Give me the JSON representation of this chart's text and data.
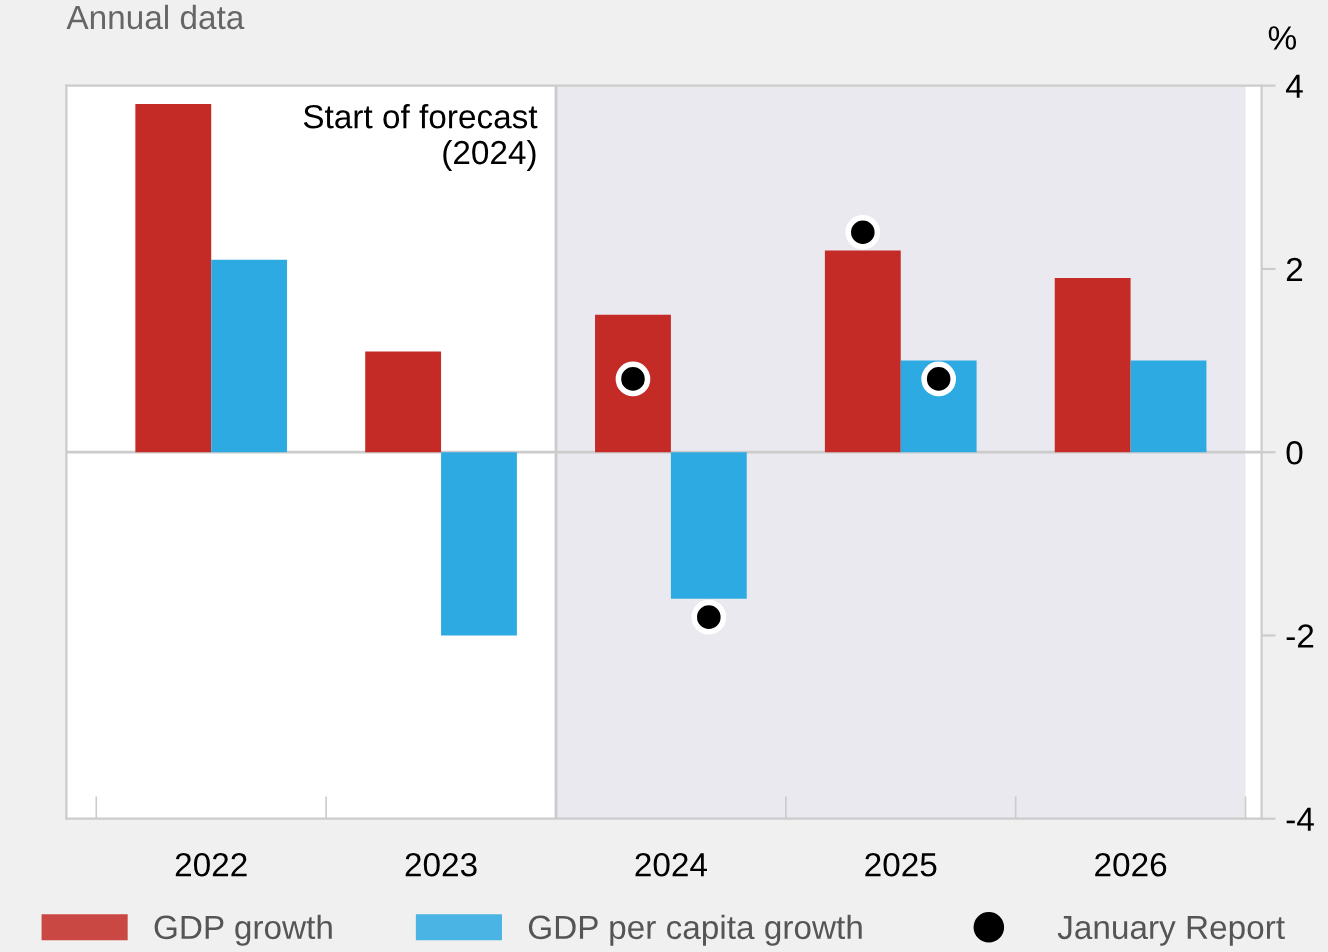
{
  "chart_data": {
    "type": "bar",
    "subtitle": "Annual data",
    "ylabel": "%",
    "categories": [
      "2022",
      "2023",
      "2024",
      "2025",
      "2026"
    ],
    "series": [
      {
        "name": "GDP growth",
        "color": "#c42b27",
        "values": [
          3.8,
          1.1,
          1.5,
          2.2,
          1.9
        ]
      },
      {
        "name": "GDP per capita growth",
        "color": "#2eaae3",
        "values": [
          2.1,
          -2.0,
          -1.6,
          1.0,
          1.0
        ]
      },
      {
        "name": "January Report",
        "type": "scatter",
        "color": "#000000",
        "values": [
          null,
          null,
          0.8,
          2.4,
          null
        ]
      },
      {
        "type": "scatter",
        "color": "#000000",
        "values": [
          null,
          null,
          -1.8,
          0.8,
          null
        ]
      }
    ],
    "ylim": [
      -4,
      4
    ],
    "yticks": [
      -4,
      -2,
      0,
      2,
      4
    ],
    "grid": false,
    "legend": "bottom",
    "marker": "circle",
    "ref_lines": [
      {
        "axis": "y",
        "value": 0,
        "color": "#cccccc"
      }
    ],
    "bands": [
      {
        "axis": "x",
        "from": "2024",
        "to": "2026",
        "color": "#e9e9ef"
      }
    ],
    "annotations": [
      "Start of forecast\n(2024)"
    ]
  }
}
